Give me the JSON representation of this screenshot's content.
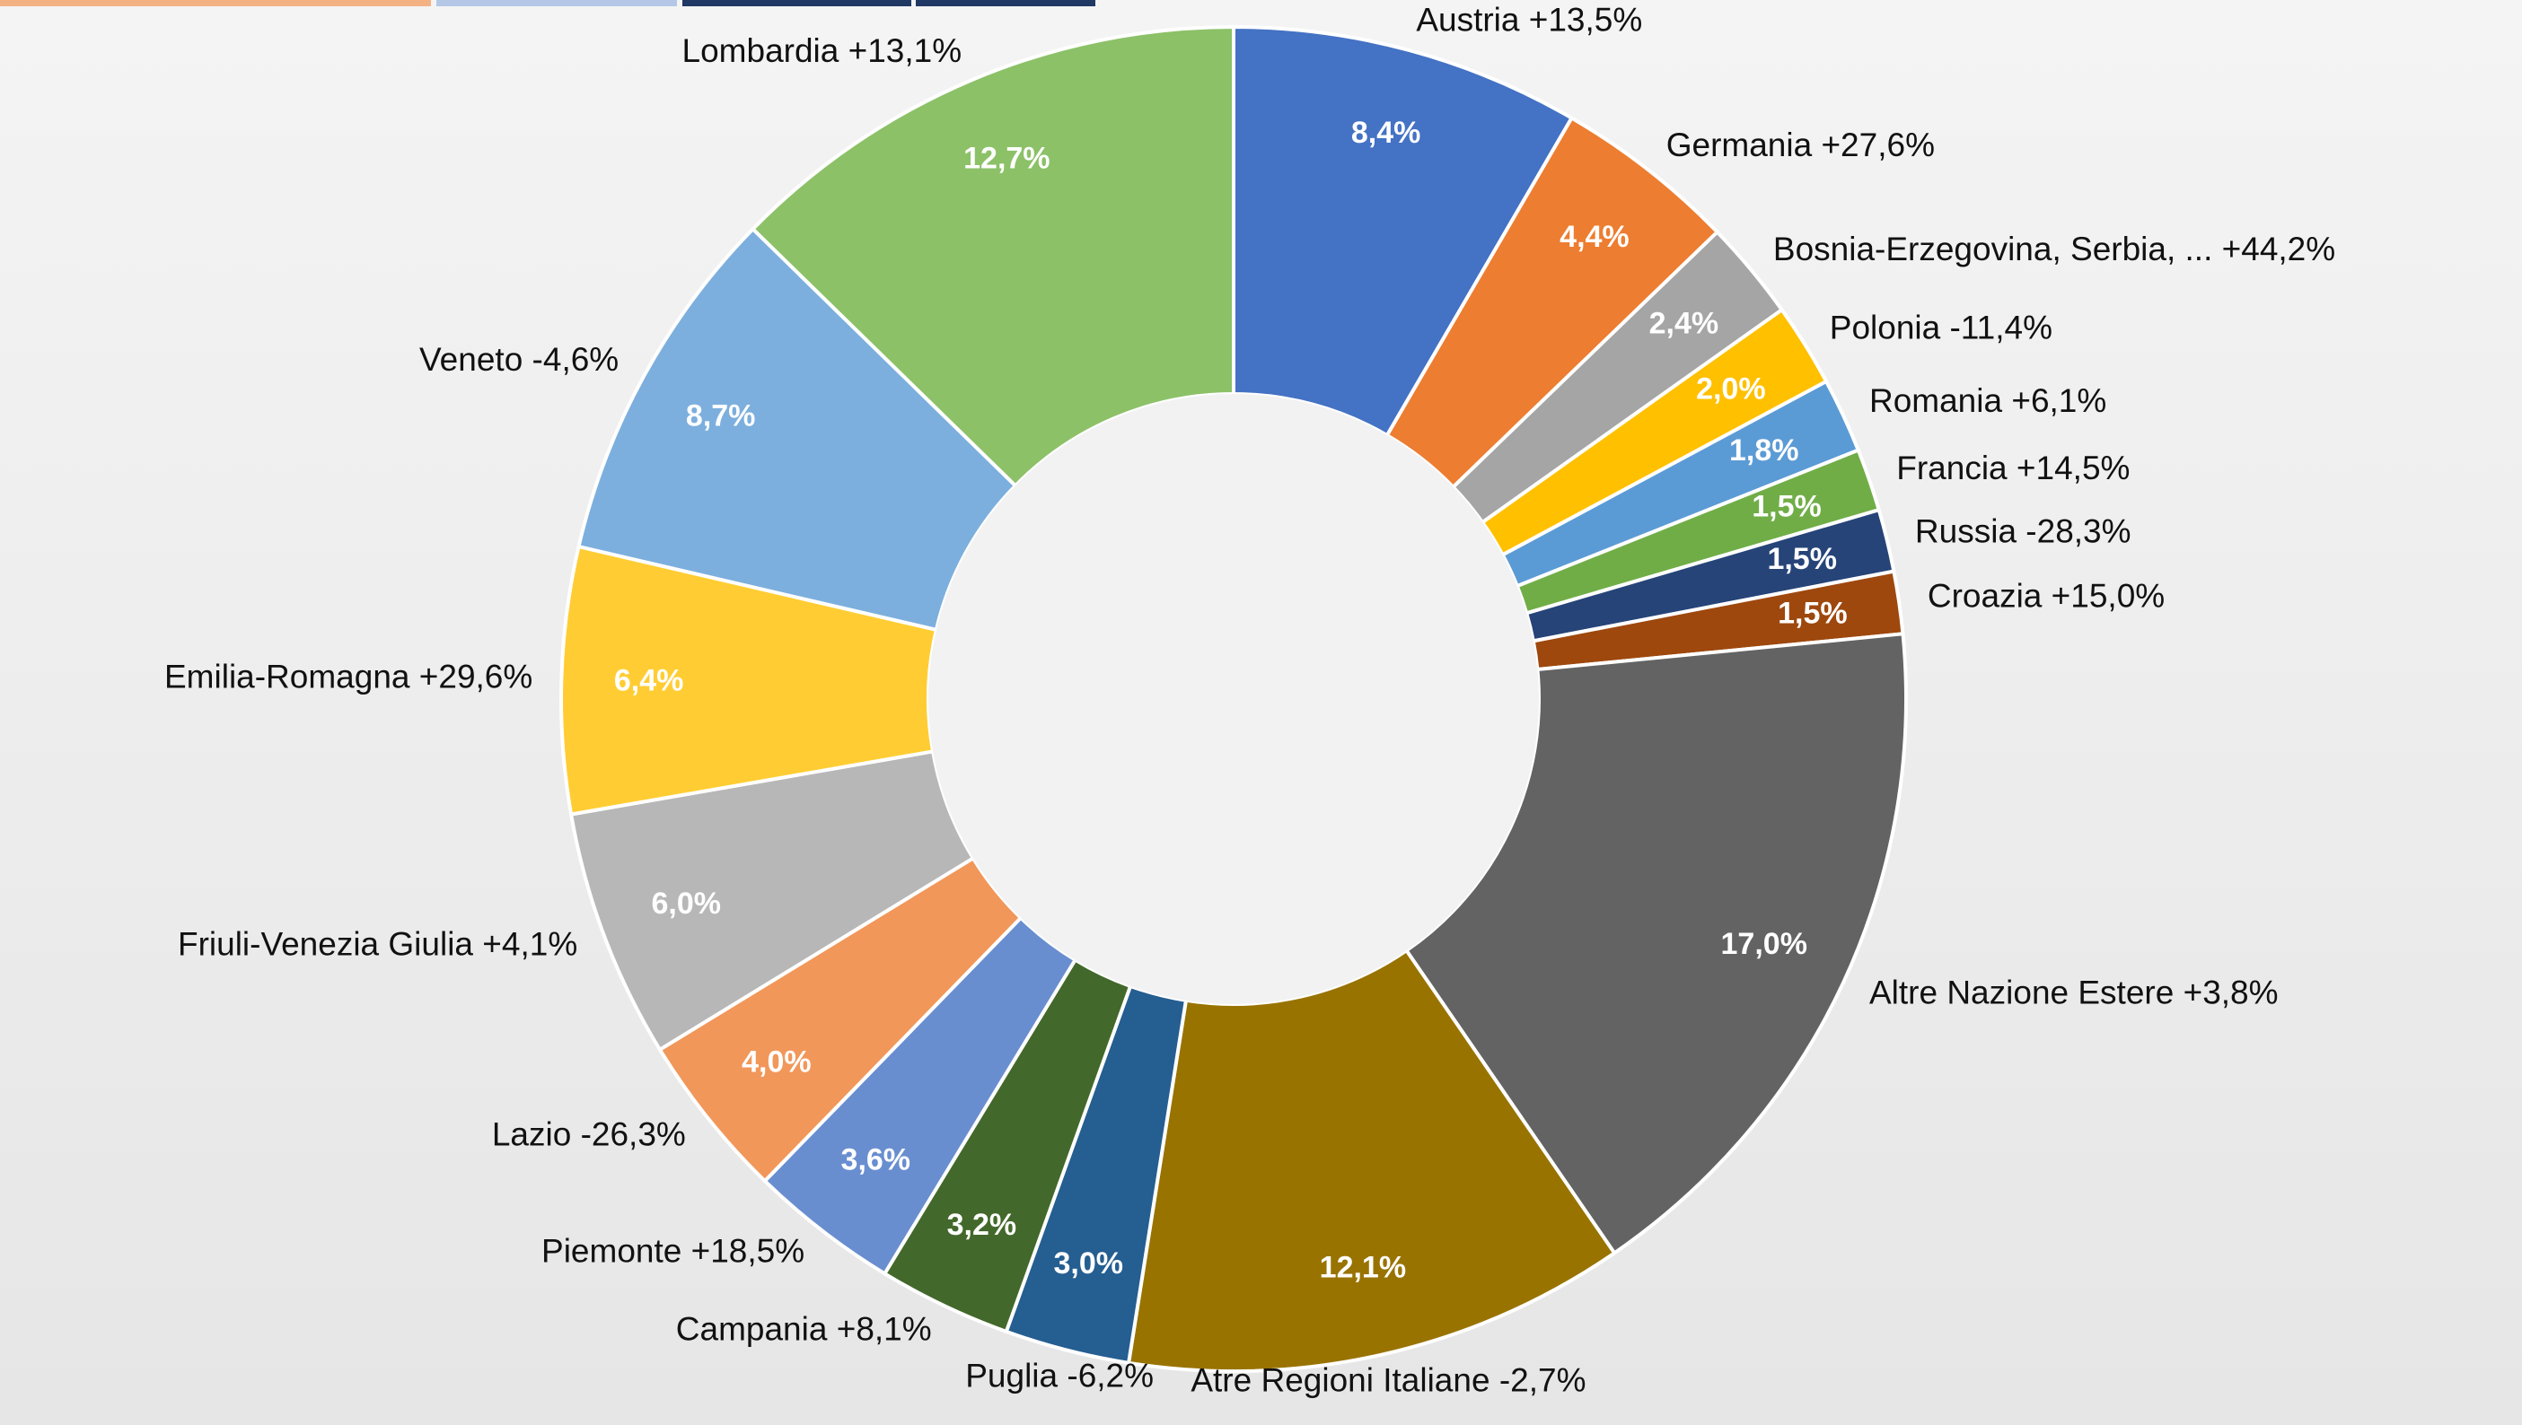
{
  "chart_data": {
    "type": "donut",
    "categories": [
      "Austria +13,5%",
      "Germania +27,6%",
      "Bosnia-Erzegovina, Serbia, ...  +44,2%",
      "Polonia -11,4%",
      "Romania +6,1%",
      "Francia +14,5%",
      "Russia -28,3%",
      "Croazia +15,0%",
      "Altre Nazione Estere +3,8%",
      "Atre Regioni Italiane -2,7%",
      "Puglia -6,2%",
      "Campania +8,1%",
      "Piemonte +18,5%",
      "Lazio -26,3%",
      "Friuli-Venezia Giulia +4,1%",
      "Emilia-Romagna +29,6%",
      "Veneto -4,6%",
      "Lombardia +13,1%"
    ],
    "values": [
      8.4,
      4.4,
      2.4,
      2.0,
      1.8,
      1.5,
      1.5,
      1.5,
      17.0,
      12.1,
      3.0,
      3.2,
      3.6,
      4.0,
      6.0,
      6.4,
      8.7,
      12.7
    ],
    "value_labels": [
      "8,4%",
      "4,4%",
      "2,4%",
      "2,0%",
      "1,8%",
      "1,5%",
      "1,5%",
      "1,5%",
      "17,0%",
      "12,1%",
      "3,0%",
      "3,2%",
      "3,6%",
      "4,0%",
      "6,0%",
      "6,4%",
      "8,7%",
      "12,7%"
    ],
    "colors": [
      "#4472c4",
      "#ed7d31",
      "#a5a5a5",
      "#ffc000",
      "#5b9bd5",
      "#70ad47",
      "#264478",
      "#9e480e",
      "#636363",
      "#997300",
      "#255e91",
      "#43682b",
      "#698ed0",
      "#f1975a",
      "#b7b7b7",
      "#ffcd33",
      "#7cafdd",
      "#8cc168"
    ]
  }
}
